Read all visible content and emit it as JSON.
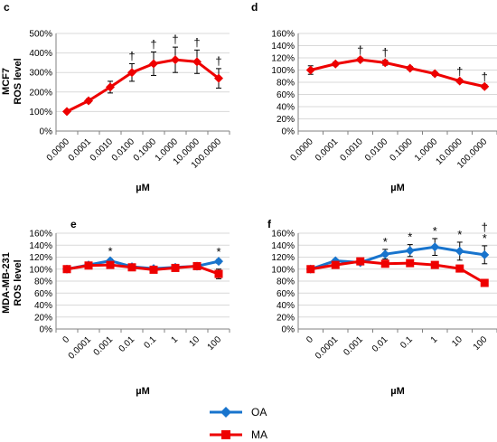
{
  "colors": {
    "OA": "#1874CD",
    "MA": "#EE0000",
    "grid": "#D9D9D9",
    "axis": "#808080"
  },
  "legend": [
    {
      "name": "OA",
      "marker": "diamond",
      "color": "#1874CD"
    },
    {
      "name": "MA",
      "marker": "square",
      "color": "#EE0000"
    }
  ],
  "row_labels": {
    "top": [
      "MCF7",
      "ROS level"
    ],
    "bottom": [
      "MDA-MB-231",
      "ROS level"
    ]
  },
  "chart_data": [
    {
      "panel": "c",
      "type": "line",
      "xlabel": "µM",
      "ylabel": "MCF7 ROS level",
      "ylim": [
        0,
        500
      ],
      "yticks": [
        0,
        100,
        200,
        300,
        400,
        500
      ],
      "ytick_format": "percent",
      "grid": true,
      "categories": [
        "0.0000",
        "0.0001",
        "0.0010",
        "0.0100",
        "0.1000",
        "1.0000",
        "10.0000",
        "100.0000"
      ],
      "series": [
        {
          "name": "MA",
          "color": "#EE0000",
          "marker": "diamond",
          "values": [
            100,
            155,
            225,
            300,
            345,
            365,
            355,
            270
          ],
          "errors": [
            0,
            10,
            30,
            45,
            60,
            65,
            60,
            50
          ],
          "annotations": [
            "",
            "",
            "",
            "†",
            "†",
            "†",
            "†",
            "†"
          ]
        }
      ]
    },
    {
      "panel": "d",
      "type": "line",
      "xlabel": "µM",
      "ylabel": "",
      "ylim": [
        0,
        160
      ],
      "yticks": [
        0,
        20,
        40,
        60,
        80,
        100,
        120,
        140,
        160
      ],
      "ytick_format": "percent",
      "grid": true,
      "categories": [
        "0.0000",
        "0.0001",
        "0.0010",
        "0.0100",
        "0.1000",
        "1.0000",
        "10.0000",
        "100.0000"
      ],
      "series": [
        {
          "name": "MA",
          "color": "#EE0000",
          "marker": "diamond",
          "values": [
            100,
            110,
            117,
            112,
            103,
            94,
            82,
            73
          ],
          "errors": [
            7,
            3,
            3,
            4,
            3,
            3,
            3,
            3
          ],
          "annotations": [
            "",
            "",
            "†",
            "†",
            "",
            "",
            "†",
            "†"
          ]
        }
      ]
    },
    {
      "panel": "e",
      "type": "line",
      "xlabel": "µM",
      "ylabel": "MDA-MB-231 ROS level",
      "ylim": [
        0,
        160
      ],
      "yticks": [
        0,
        20,
        40,
        60,
        80,
        100,
        120,
        140,
        160
      ],
      "ytick_format": "percent",
      "grid": true,
      "categories": [
        "0",
        "0.0001",
        "0.001",
        "0.01",
        "0.1",
        "1",
        "10",
        "100"
      ],
      "series": [
        {
          "name": "OA",
          "color": "#1874CD",
          "marker": "diamond",
          "values": [
            100,
            107,
            114,
            104,
            101,
            103,
            105,
            113
          ],
          "errors": [
            2,
            3,
            3,
            2,
            2,
            2,
            2,
            3
          ],
          "annotations": [
            "",
            "",
            "*",
            "",
            "",
            "",
            "",
            "*"
          ]
        },
        {
          "name": "MA",
          "color": "#EE0000",
          "marker": "square",
          "values": [
            100,
            106,
            107,
            103,
            99,
            102,
            105,
            92
          ],
          "errors": [
            2,
            3,
            3,
            2,
            2,
            2,
            2,
            8
          ],
          "annotations": [
            "",
            "",
            "",
            "",
            "",
            "",
            "",
            ""
          ]
        }
      ]
    },
    {
      "panel": "f",
      "type": "line",
      "xlabel": "µM",
      "ylabel": "",
      "ylim": [
        0,
        160
      ],
      "yticks": [
        0,
        20,
        40,
        60,
        80,
        100,
        120,
        140,
        160
      ],
      "ytick_format": "percent",
      "grid": true,
      "categories": [
        "0",
        "0.0001",
        "0.001",
        "0.01",
        "0.1",
        "1",
        "10",
        "100"
      ],
      "series": [
        {
          "name": "OA",
          "color": "#1874CD",
          "marker": "diamond",
          "values": [
            100,
            114,
            111,
            125,
            131,
            137,
            130,
            124
          ],
          "errors": [
            2,
            3,
            3,
            8,
            10,
            14,
            15,
            15
          ],
          "annotations": [
            "",
            "",
            "",
            "*",
            "*",
            "*",
            "*",
            "*"
          ]
        },
        {
          "name": "MA",
          "color": "#EE0000",
          "marker": "square",
          "values": [
            100,
            107,
            113,
            109,
            110,
            107,
            101,
            77
          ],
          "errors": [
            2,
            3,
            3,
            3,
            3,
            3,
            3,
            4
          ],
          "annotations": [
            "",
            "",
            "",
            "",
            "",
            "",
            "",
            "†"
          ]
        }
      ]
    }
  ]
}
